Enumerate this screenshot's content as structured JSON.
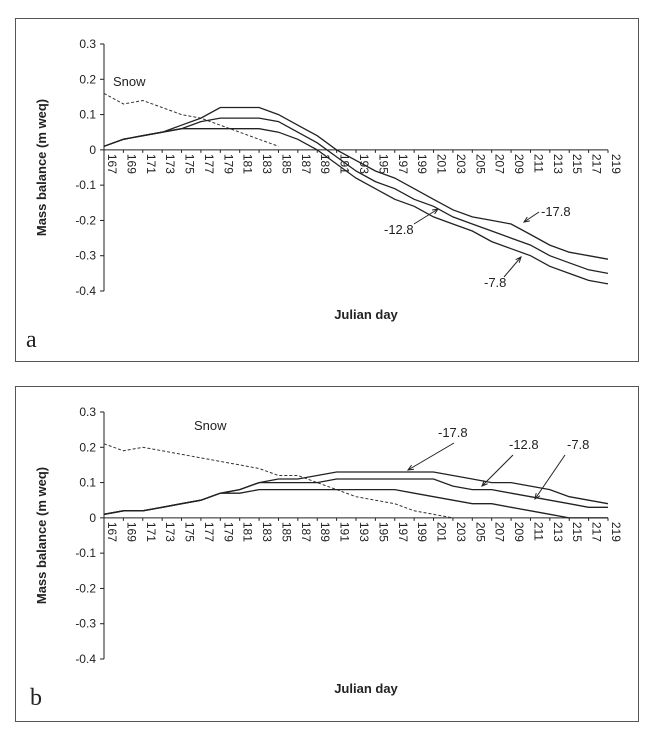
{
  "chart_data": [
    {
      "panel_label": "a",
      "type": "line",
      "xlabel": "Julian day",
      "ylabel": "Mass balance (m weq)",
      "ylim": [
        -0.4,
        0.3
      ],
      "yticks": [
        "0.3",
        "0.2",
        "0.1",
        "0",
        "-0.1",
        "-0.2",
        "-0.3",
        "-0.4"
      ],
      "xticks": [
        "167",
        "169",
        "171",
        "173",
        "175",
        "177",
        "179",
        "181",
        "183",
        "185",
        "187",
        "189",
        "191",
        "193",
        "195",
        "197",
        "199",
        "201",
        "203",
        "205",
        "207",
        "209",
        "211",
        "213",
        "215",
        "217",
        "219"
      ],
      "x": [
        167,
        169,
        171,
        173,
        175,
        177,
        179,
        181,
        183,
        185,
        187,
        189,
        191,
        193,
        195,
        197,
        199,
        201,
        203,
        205,
        207,
        209,
        211,
        213,
        215,
        217,
        219
      ],
      "series": [
        {
          "name": "Snow",
          "style": "dashed",
          "values": [
            0.16,
            0.13,
            0.14,
            0.12,
            0.1,
            0.09,
            0.07,
            0.05,
            0.03,
            0.01,
            null,
            null,
            null,
            null,
            null,
            null,
            null,
            null,
            null,
            null,
            null,
            null,
            null,
            null,
            null,
            null,
            null
          ]
        },
        {
          "name": "-17.8",
          "values": [
            0.01,
            0.03,
            0.04,
            0.05,
            0.07,
            0.09,
            0.12,
            0.12,
            0.12,
            0.1,
            0.07,
            0.04,
            0.0,
            -0.03,
            -0.06,
            -0.08,
            -0.11,
            -0.14,
            -0.17,
            -0.19,
            -0.2,
            -0.21,
            -0.24,
            -0.27,
            -0.29,
            -0.3,
            -0.31
          ]
        },
        {
          "name": "-12.8",
          "values": [
            0.01,
            0.03,
            0.04,
            0.05,
            0.06,
            0.08,
            0.09,
            0.09,
            0.09,
            0.08,
            0.05,
            0.02,
            -0.02,
            -0.06,
            -0.09,
            -0.11,
            -0.14,
            -0.16,
            -0.19,
            -0.21,
            -0.23,
            -0.25,
            -0.27,
            -0.3,
            -0.32,
            -0.34,
            -0.35
          ]
        },
        {
          "name": "-7.8",
          "values": [
            0.01,
            0.03,
            0.04,
            0.05,
            0.06,
            0.06,
            0.06,
            0.06,
            0.06,
            0.05,
            0.03,
            0.0,
            -0.04,
            -0.08,
            -0.11,
            -0.14,
            -0.16,
            -0.19,
            -0.21,
            -0.23,
            -0.26,
            -0.28,
            -0.3,
            -0.33,
            -0.35,
            -0.37,
            -0.38
          ]
        }
      ],
      "annotations": [
        "Snow",
        "-17.8",
        "-12.8",
        "-7.8"
      ]
    },
    {
      "panel_label": "b",
      "type": "line",
      "xlabel": "Julian day",
      "ylabel": "Mass balance (m weq)",
      "ylim": [
        -0.4,
        0.3
      ],
      "yticks": [
        "0.3",
        "0.2",
        "0.1",
        "0",
        "-0.1",
        "-0.2",
        "-0.3",
        "-0.4"
      ],
      "xticks": [
        "167",
        "169",
        "171",
        "173",
        "175",
        "177",
        "179",
        "181",
        "183",
        "185",
        "187",
        "189",
        "191",
        "193",
        "195",
        "197",
        "199",
        "201",
        "203",
        "205",
        "207",
        "209",
        "211",
        "213",
        "215",
        "217",
        "219"
      ],
      "x": [
        167,
        169,
        171,
        173,
        175,
        177,
        179,
        181,
        183,
        185,
        187,
        189,
        191,
        193,
        195,
        197,
        199,
        201,
        203,
        205,
        207,
        209,
        211,
        213,
        215,
        217,
        219
      ],
      "series": [
        {
          "name": "Snow",
          "style": "dashed",
          "values": [
            0.21,
            0.19,
            0.2,
            0.19,
            0.18,
            0.17,
            0.16,
            0.15,
            0.14,
            0.12,
            0.12,
            0.1,
            0.08,
            0.06,
            0.05,
            0.04,
            0.02,
            0.01,
            0.0,
            null,
            null,
            null,
            null,
            null,
            null,
            null,
            null
          ]
        },
        {
          "name": "-17.8",
          "values": [
            0.01,
            0.02,
            0.02,
            0.03,
            0.04,
            0.05,
            0.07,
            0.08,
            0.1,
            0.11,
            0.11,
            0.12,
            0.13,
            0.13,
            0.13,
            0.13,
            0.13,
            0.13,
            0.12,
            0.11,
            0.1,
            0.1,
            0.09,
            0.08,
            0.06,
            0.05,
            0.04
          ]
        },
        {
          "name": "-12.8",
          "values": [
            0.01,
            0.02,
            0.02,
            0.03,
            0.04,
            0.05,
            0.07,
            0.08,
            0.1,
            0.1,
            0.1,
            0.1,
            0.11,
            0.11,
            0.11,
            0.11,
            0.11,
            0.11,
            0.09,
            0.08,
            0.08,
            0.07,
            0.06,
            0.05,
            0.04,
            0.03,
            0.03
          ]
        },
        {
          "name": "-7.8",
          "values": [
            0.01,
            0.02,
            0.02,
            0.03,
            0.04,
            0.05,
            0.07,
            0.07,
            0.08,
            0.08,
            0.08,
            0.08,
            0.08,
            0.08,
            0.08,
            0.08,
            0.07,
            0.06,
            0.05,
            0.04,
            0.04,
            0.03,
            0.02,
            0.01,
            0.0,
            0.0,
            0.0
          ]
        }
      ],
      "annotations": [
        "Snow",
        "-17.8",
        "-12.8",
        "-7.8"
      ]
    }
  ]
}
